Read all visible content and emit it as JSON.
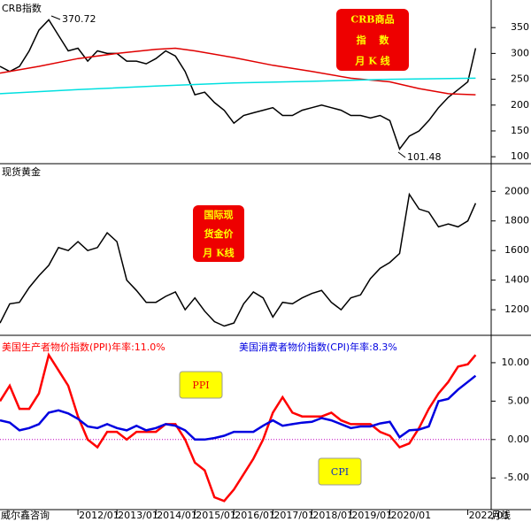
{
  "chart_data": [
    {
      "type": "line",
      "title": "CRB指数",
      "xlim": [
        2010,
        2022.6
      ],
      "ylim": [
        90,
        400
      ],
      "yticks": [
        100,
        150,
        200,
        250,
        300,
        350
      ],
      "annotations": [
        "370.72",
        "101.48"
      ],
      "box": [
        "CRB商品",
        "指　 数",
        "月 K 线"
      ],
      "series": [
        {
          "color": "#000000",
          "x": [
            2010.0,
            2010.25,
            2010.5,
            2010.75,
            2011.0,
            2011.25,
            2011.5,
            2011.75,
            2012.0,
            2012.25,
            2012.5,
            2012.75,
            2013.0,
            2013.25,
            2013.5,
            2013.75,
            2014.0,
            2014.25,
            2014.5,
            2014.75,
            2015.0,
            2015.25,
            2015.5,
            2015.75,
            2016.0,
            2016.25,
            2016.5,
            2016.75,
            2017.0,
            2017.25,
            2017.5,
            2017.75,
            2018.0,
            2018.25,
            2018.5,
            2018.75,
            2019.0,
            2019.25,
            2019.5,
            2019.75,
            2020.0,
            2020.25,
            2020.5,
            2020.75,
            2021.0,
            2021.25,
            2021.5,
            2021.75,
            2022.0,
            2022.2
          ],
          "values": [
            275,
            265,
            275,
            305,
            345,
            365,
            335,
            305,
            310,
            285,
            305,
            300,
            300,
            285,
            285,
            280,
            290,
            305,
            295,
            265,
            220,
            225,
            205,
            190,
            165,
            180,
            185,
            190,
            195,
            180,
            180,
            190,
            195,
            200,
            195,
            190,
            180,
            180,
            175,
            180,
            170,
            115,
            140,
            150,
            170,
            195,
            215,
            230,
            245,
            310
          ]
        },
        {
          "color": "#e00000",
          "x": [
            2010.0,
            2011.0,
            2012.0,
            2013.0,
            2014.0,
            2014.5,
            2015.0,
            2016.0,
            2017.0,
            2018.0,
            2019.0,
            2020.0,
            2020.75,
            2021.5,
            2022.2
          ],
          "values": [
            262,
            275,
            290,
            300,
            308,
            310,
            305,
            292,
            277,
            265,
            252,
            245,
            232,
            222,
            220
          ]
        },
        {
          "color": "#00e0e0",
          "x": [
            2010.0,
            2012.0,
            2014.0,
            2016.0,
            2018.0,
            2020.0,
            2022.2
          ],
          "values": [
            222,
            230,
            237,
            243,
            246,
            250,
            252
          ]
        }
      ]
    },
    {
      "type": "line",
      "title": "现货黄金",
      "xlim": [
        2010,
        2022.6
      ],
      "ylim": [
        1045,
        2175
      ],
      "yticks": [
        1200,
        1400,
        1600,
        1800,
        2000
      ],
      "box": [
        "国际现",
        "货金价",
        "月 K线"
      ],
      "series": [
        {
          "color": "#000000",
          "x": [
            2010.0,
            2010.25,
            2010.5,
            2010.75,
            2011.0,
            2011.25,
            2011.5,
            2011.75,
            2012.0,
            2012.25,
            2012.5,
            2012.75,
            2013.0,
            2013.25,
            2013.5,
            2013.75,
            2014.0,
            2014.25,
            2014.5,
            2014.75,
            2015.0,
            2015.25,
            2015.5,
            2015.75,
            2016.0,
            2016.25,
            2016.5,
            2016.75,
            2017.0,
            2017.25,
            2017.5,
            2017.75,
            2018.0,
            2018.25,
            2018.5,
            2018.75,
            2019.0,
            2019.25,
            2019.5,
            2019.75,
            2020.0,
            2020.25,
            2020.5,
            2020.75,
            2021.0,
            2021.25,
            2021.5,
            2021.75,
            2022.0,
            2022.2
          ],
          "values": [
            1110,
            1240,
            1250,
            1350,
            1430,
            1500,
            1620,
            1600,
            1660,
            1600,
            1620,
            1720,
            1660,
            1400,
            1330,
            1250,
            1250,
            1290,
            1320,
            1200,
            1280,
            1190,
            1120,
            1090,
            1110,
            1240,
            1320,
            1280,
            1150,
            1250,
            1240,
            1280,
            1310,
            1330,
            1250,
            1200,
            1280,
            1300,
            1410,
            1480,
            1520,
            1580,
            1980,
            1880,
            1860,
            1760,
            1780,
            1760,
            1800,
            1920
          ]
        }
      ]
    },
    {
      "type": "line",
      "xlim": [
        2010,
        2022.6
      ],
      "ylim": [
        -9,
        13.1
      ],
      "yticks": [
        {
          "value": 10,
          "label": "10.00"
        },
        {
          "value": 5,
          "label": "5.00"
        },
        {
          "value": 0,
          "label": "0.00"
        },
        {
          "value": -5,
          "label": "-5.00"
        }
      ],
      "xticks": [
        {
          "value": 2012,
          "label": "2012/01"
        },
        {
          "value": 2013,
          "label": "2013/01"
        },
        {
          "value": 2014,
          "label": "2014/01"
        },
        {
          "value": 2015,
          "label": "2015/01"
        },
        {
          "value": 2016,
          "label": "2016/01"
        },
        {
          "value": 2017,
          "label": "2017/01"
        },
        {
          "value": 2018,
          "label": "2018/01"
        },
        {
          "value": 2019,
          "label": "2019/01"
        },
        {
          "value": 2020,
          "label": "2020/01"
        },
        {
          "value": 2022,
          "label": "2022/01"
        }
      ],
      "hline": 0,
      "source": "威尔鑫咨询",
      "period": "月线",
      "tags": [
        "PPI",
        "CPI"
      ],
      "series": [
        {
          "name": "美国生产者物价指数(PPI)年率:11.0%",
          "color": "#ff0000",
          "x": [
            2010.0,
            2010.25,
            2010.5,
            2010.75,
            2011.0,
            2011.25,
            2011.5,
            2011.75,
            2012.0,
            2012.25,
            2012.5,
            2012.75,
            2013.0,
            2013.25,
            2013.5,
            2013.75,
            2014.0,
            2014.25,
            2014.5,
            2014.75,
            2015.0,
            2015.25,
            2015.5,
            2015.75,
            2016.0,
            2016.25,
            2016.5,
            2016.75,
            2017.0,
            2017.25,
            2017.5,
            2017.75,
            2018.0,
            2018.25,
            2018.5,
            2018.75,
            2019.0,
            2019.25,
            2019.5,
            2019.75,
            2020.0,
            2020.25,
            2020.5,
            2020.75,
            2021.0,
            2021.25,
            2021.5,
            2021.75,
            2022.0,
            2022.2
          ],
          "values": [
            5,
            7,
            4,
            4,
            6,
            11,
            9,
            7,
            3,
            0,
            -1,
            1,
            1,
            0,
            1,
            1,
            1,
            2,
            2,
            0,
            -3,
            -4,
            -7.5,
            -8,
            -6.5,
            -4.5,
            -2.5,
            0,
            3.5,
            5.5,
            3.5,
            3,
            3,
            3,
            3.5,
            2.5,
            2,
            2,
            2,
            1,
            0.5,
            -1,
            -0.5,
            1.5,
            4,
            6,
            7.5,
            9.5,
            9.8,
            11
          ]
        },
        {
          "name": "美国消费者物价指数(CPI)年率:8.3%",
          "color": "#0000e0",
          "x": [
            2010.0,
            2010.25,
            2010.5,
            2010.75,
            2011.0,
            2011.25,
            2011.5,
            2011.75,
            2012.0,
            2012.25,
            2012.5,
            2012.75,
            2013.0,
            2013.25,
            2013.5,
            2013.75,
            2014.0,
            2014.25,
            2014.5,
            2014.75,
            2015.0,
            2015.25,
            2015.5,
            2015.75,
            2016.0,
            2016.25,
            2016.5,
            2016.75,
            2017.0,
            2017.25,
            2017.5,
            2017.75,
            2018.0,
            2018.25,
            2018.5,
            2018.75,
            2019.0,
            2019.25,
            2019.5,
            2019.75,
            2020.0,
            2020.25,
            2020.5,
            2020.75,
            2021.0,
            2021.25,
            2021.5,
            2021.75,
            2022.0,
            2022.2
          ],
          "values": [
            2.5,
            2.2,
            1.2,
            1.5,
            2,
            3.5,
            3.8,
            3.4,
            2.7,
            1.7,
            1.5,
            2,
            1.5,
            1.2,
            1.8,
            1.2,
            1.5,
            2,
            1.8,
            1.2,
            0,
            0,
            0.2,
            0.5,
            1,
            1,
            1,
            1.8,
            2.5,
            1.8,
            2,
            2.2,
            2.3,
            2.8,
            2.5,
            2,
            1.5,
            1.7,
            1.7,
            2.1,
            2.3,
            0.3,
            1.2,
            1.3,
            1.7,
            5,
            5.3,
            6.5,
            7.5,
            8.3
          ]
        }
      ]
    }
  ]
}
